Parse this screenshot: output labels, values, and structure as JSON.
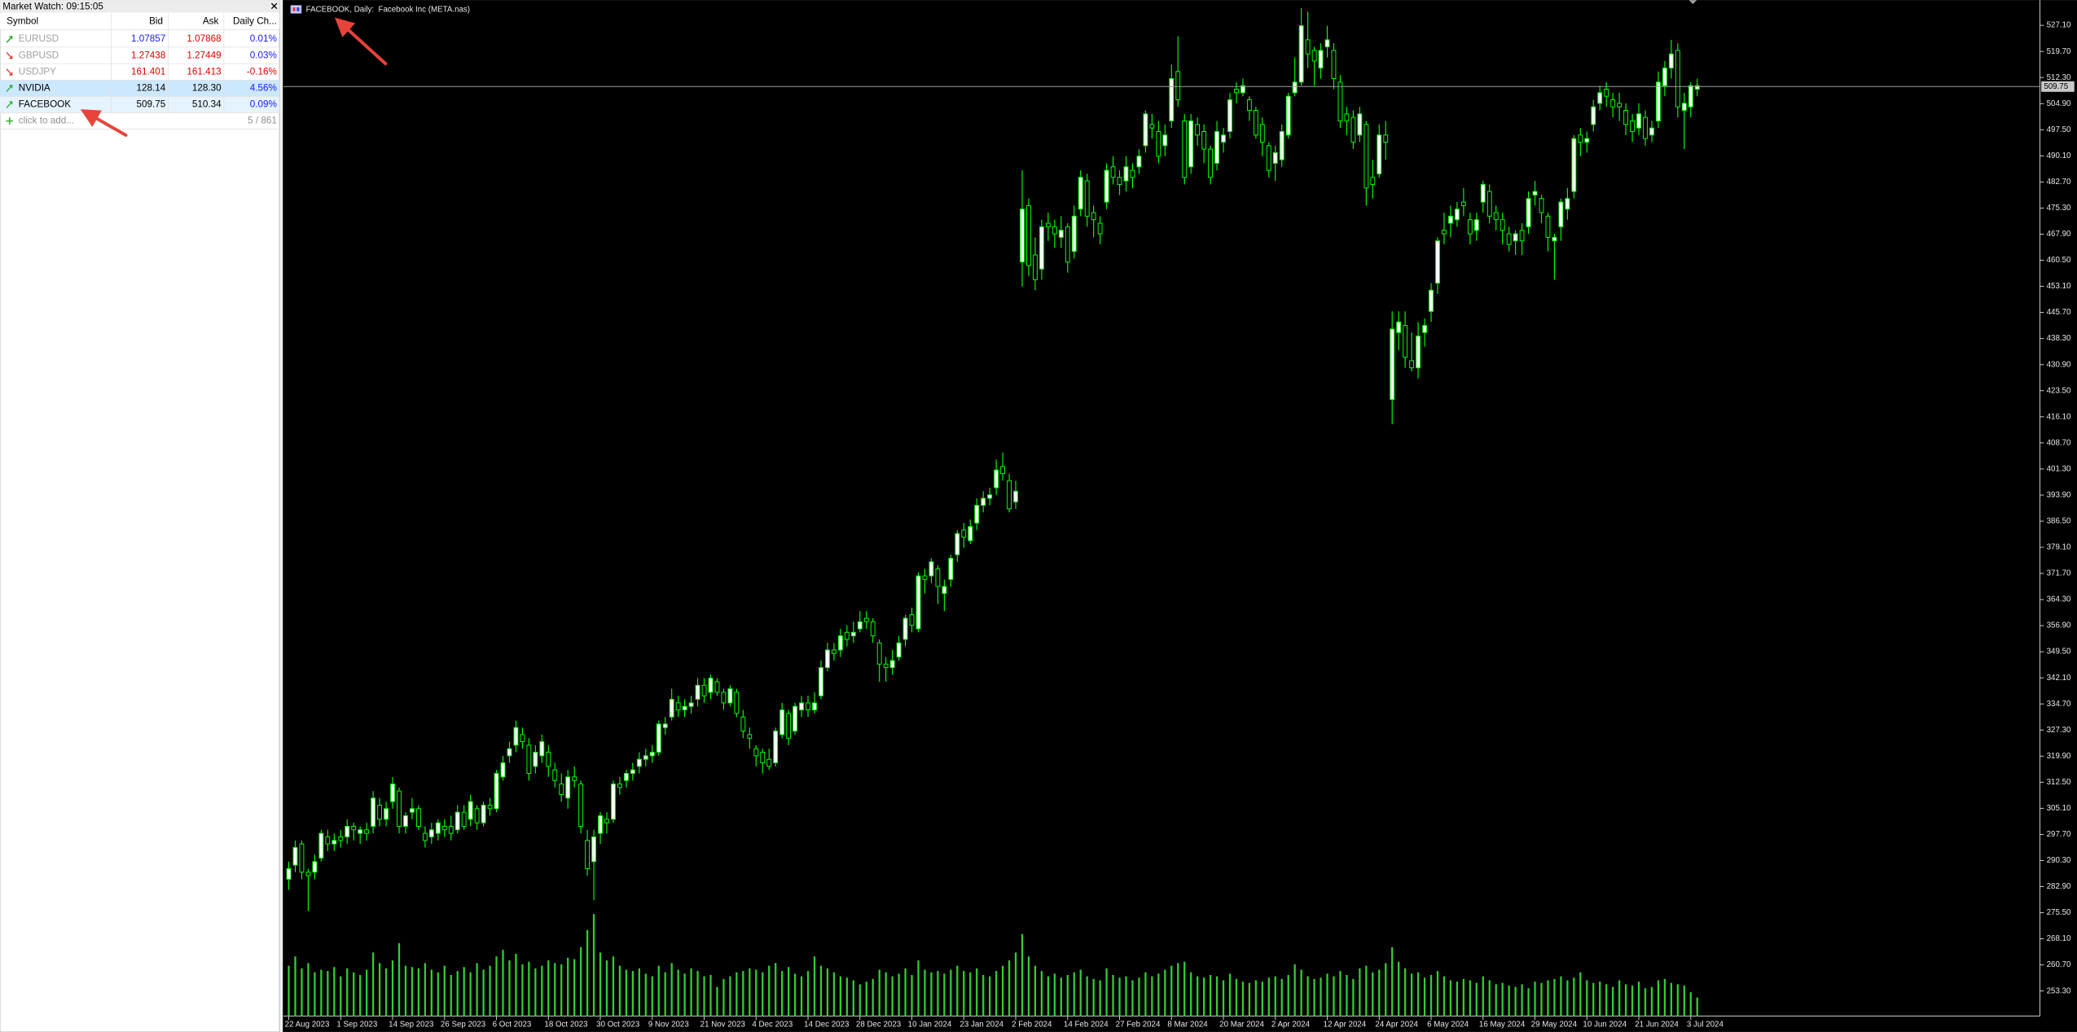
{
  "market_watch": {
    "title": "Market Watch: 09:15:05",
    "columns": [
      "Symbol",
      "Bid",
      "Ask",
      "Daily Ch..."
    ],
    "rows": [
      {
        "symbol": "EURUSD",
        "bid": "1.07857",
        "ask": "1.07868",
        "change": "0.01%"
      },
      {
        "symbol": "GBPUSD",
        "bid": "1.27438",
        "ask": "1.27449",
        "change": "0.03%"
      },
      {
        "symbol": "USDJPY",
        "bid": "161.401",
        "ask": "161.413",
        "change": "-0.16%"
      },
      {
        "symbol": "NVIDIA",
        "bid": "128.14",
        "ask": "128.30",
        "change": "4.56%"
      },
      {
        "symbol": "FACEBOOK",
        "bid": "509.75",
        "ask": "510.34",
        "change": "0.09%"
      }
    ],
    "add_label": "click to add...",
    "count": "5 / 861"
  },
  "chart_data": {
    "type": "candlestick",
    "title": "FACEBOOK, Daily:  Facebook Inc (META.nas)",
    "categories": [
      "22 Aug 2023",
      null,
      null,
      null,
      null,
      null,
      null,
      null,
      "1 Sep 2023",
      null,
      null,
      null,
      null,
      null,
      null,
      null,
      "14 Sep 2023",
      null,
      null,
      null,
      null,
      null,
      null,
      null,
      "26 Sep 2023",
      null,
      null,
      null,
      null,
      null,
      null,
      null,
      "6 Oct 2023",
      null,
      null,
      null,
      null,
      null,
      null,
      null,
      "18 Oct 2023",
      null,
      null,
      null,
      null,
      null,
      null,
      null,
      "30 Oct 2023",
      null,
      null,
      null,
      null,
      null,
      null,
      null,
      "9 Nov 2023",
      null,
      null,
      null,
      null,
      null,
      null,
      null,
      "21 Nov 2023",
      null,
      null,
      null,
      null,
      null,
      null,
      null,
      "4 Dec 2023",
      null,
      null,
      null,
      null,
      null,
      null,
      null,
      "14 Dec 2023",
      null,
      null,
      null,
      null,
      null,
      null,
      null,
      "28 Dec 2023",
      null,
      null,
      null,
      null,
      null,
      null,
      null,
      "10 Jan 2024",
      null,
      null,
      null,
      null,
      null,
      null,
      null,
      "23 Jan 2024",
      null,
      null,
      null,
      null,
      null,
      null,
      null,
      "2 Feb 2024",
      null,
      null,
      null,
      null,
      null,
      null,
      null,
      "14 Feb 2024",
      null,
      null,
      null,
      null,
      null,
      null,
      null,
      "27 Feb 2024",
      null,
      null,
      null,
      null,
      null,
      null,
      null,
      "8 Mar 2024",
      null,
      null,
      null,
      null,
      null,
      null,
      null,
      "20 Mar 2024",
      null,
      null,
      null,
      null,
      null,
      null,
      null,
      "2 Apr 2024",
      null,
      null,
      null,
      null,
      null,
      null,
      null,
      "12 Apr 2024",
      null,
      null,
      null,
      null,
      null,
      null,
      null,
      "24 Apr 2024",
      null,
      null,
      null,
      null,
      null,
      null,
      null,
      "6 May 2024",
      null,
      null,
      null,
      null,
      null,
      null,
      null,
      "16 May 2024",
      null,
      null,
      null,
      null,
      null,
      null,
      null,
      "29 May 2024",
      null,
      null,
      null,
      null,
      null,
      null,
      null,
      "10 Jun 2024",
      null,
      null,
      null,
      null,
      null,
      null,
      null,
      "21 Jun 2024",
      null,
      null,
      null,
      null,
      null,
      null,
      null,
      "3 Jul 2024",
      null
    ],
    "open": [
      285,
      289,
      295,
      287,
      287,
      291,
      297,
      295,
      297,
      297,
      300,
      298,
      299,
      300,
      306,
      302,
      307,
      310,
      300,
      304,
      305,
      298,
      297,
      298,
      300,
      300,
      299,
      304,
      302,
      305,
      301,
      306,
      305,
      314,
      320,
      323,
      326,
      323,
      317,
      320,
      321,
      316,
      312,
      308,
      314,
      312,
      296,
      290,
      298,
      302,
      302,
      312,
      313,
      315,
      317,
      319,
      320,
      321,
      328,
      331,
      335,
      333,
      334,
      336,
      340,
      338,
      341,
      338,
      335,
      338,
      331,
      326,
      322,
      321,
      319,
      318,
      326,
      332,
      327,
      333,
      335,
      333,
      337,
      345,
      350,
      350,
      355,
      354,
      356,
      359,
      358,
      352,
      346,
      345,
      348,
      353,
      360,
      356,
      371,
      371,
      373,
      366,
      370,
      377,
      384,
      381,
      386,
      391,
      393,
      396,
      402,
      398,
      392,
      460,
      476,
      462,
      458,
      471,
      470,
      467,
      470,
      463,
      475,
      483,
      474,
      471,
      477,
      487,
      484,
      483,
      486,
      487,
      493,
      499,
      497,
      493,
      500,
      514,
      500,
      487,
      499,
      497,
      492,
      488,
      494,
      497,
      509,
      508,
      506,
      503,
      499,
      493,
      488,
      489,
      496,
      508,
      511,
      523,
      520,
      515,
      521,
      520,
      511,
      502,
      501,
      496,
      499,
      484,
      485,
      496,
      421,
      440,
      442,
      432,
      430,
      440,
      446,
      454,
      469,
      471,
      472,
      477,
      472,
      469,
      477,
      480,
      474,
      472,
      468,
      466,
      469,
      470,
      479,
      478,
      473,
      466,
      470,
      475,
      480,
      496,
      494,
      499,
      505,
      509,
      506,
      505,
      503,
      500,
      498,
      501,
      496,
      500,
      510,
      515,
      520,
      503,
      504,
      509
    ],
    "high": [
      290,
      296,
      296,
      288,
      292,
      299,
      299,
      298,
      299,
      302,
      301,
      300,
      301,
      310,
      308,
      307,
      314,
      311,
      304,
      308,
      306,
      300,
      301,
      302,
      302,
      303,
      306,
      306,
      309,
      306,
      307,
      308,
      316,
      320,
      324,
      330,
      328,
      325,
      323,
      326,
      323,
      318,
      315,
      316,
      317,
      313,
      299,
      299,
      304,
      304,
      313,
      314,
      316,
      318,
      321,
      322,
      323,
      330,
      331,
      339,
      337,
      336,
      337,
      342,
      342,
      343,
      342,
      339,
      340,
      339,
      333,
      328,
      323,
      322,
      322,
      328,
      335,
      333,
      335,
      337,
      337,
      338,
      347,
      352,
      352,
      356,
      357,
      358,
      361,
      361,
      359,
      353,
      348,
      350,
      354,
      360,
      362,
      372,
      373,
      376,
      374,
      370,
      377,
      384,
      386,
      387,
      393,
      395,
      396,
      404,
      406,
      400,
      398,
      486,
      478,
      467,
      472,
      474,
      472,
      473,
      471,
      476,
      486,
      485,
      476,
      473,
      488,
      490,
      486,
      490,
      488,
      492,
      503,
      502,
      500,
      499,
      516,
      524,
      502,
      502,
      501,
      499,
      493,
      500,
      498,
      508,
      511,
      512,
      507,
      504,
      501,
      494,
      493,
      499,
      508,
      518,
      532,
      531,
      521,
      522,
      527,
      522,
      513,
      504,
      503,
      504,
      500,
      489,
      499,
      500,
      446,
      446,
      446,
      440,
      443,
      444,
      454,
      467,
      474,
      476,
      477,
      481,
      474,
      474,
      483,
      482,
      476,
      474,
      470,
      469,
      471,
      480,
      483,
      479,
      474,
      468,
      478,
      481,
      496,
      498,
      497,
      506,
      510,
      511,
      508,
      508,
      505,
      502,
      505,
      503,
      500,
      514,
      517,
      523,
      522,
      508,
      511,
      512
    ],
    "low": [
      282,
      287,
      285,
      276,
      285,
      290,
      293,
      293,
      294,
      295,
      296,
      295,
      296,
      298,
      300,
      300,
      305,
      298,
      298,
      302,
      299,
      294,
      295,
      296,
      297,
      296,
      298,
      299,
      300,
      299,
      300,
      303,
      304,
      313,
      318,
      321,
      322,
      313,
      315,
      318,
      314,
      311,
      307,
      305,
      311,
      298,
      286,
      279,
      295,
      298,
      301,
      309,
      311,
      313,
      315,
      317,
      318,
      320,
      326,
      330,
      331,
      331,
      332,
      334,
      335,
      336,
      337,
      333,
      334,
      331,
      325,
      322,
      317,
      315,
      316,
      317,
      325,
      323,
      326,
      331,
      331,
      332,
      336,
      344,
      347,
      348,
      351,
      352,
      355,
      356,
      352,
      341,
      341,
      343,
      347,
      351,
      355,
      355,
      366,
      369,
      363,
      361,
      368,
      375,
      379,
      380,
      384,
      389,
      391,
      394,
      398,
      389,
      390,
      453,
      456,
      452,
      455,
      466,
      464,
      464,
      457,
      461,
      473,
      470,
      467,
      465,
      475,
      482,
      479,
      480,
      481,
      485,
      491,
      495,
      488,
      490,
      498,
      504,
      482,
      485,
      493,
      488,
      482,
      486,
      491,
      495,
      505,
      507,
      500,
      495,
      490,
      484,
      483,
      487,
      495,
      507,
      510,
      515,
      510,
      512,
      518,
      509,
      498,
      496,
      492,
      494,
      476,
      478,
      484,
      489,
      414,
      435,
      430,
      429,
      427,
      436,
      443,
      451,
      465,
      467,
      470,
      473,
      465,
      466,
      474,
      471,
      469,
      465,
      463,
      462,
      462,
      468,
      476,
      471,
      463,
      455,
      466,
      472,
      478,
      490,
      491,
      497,
      503,
      504,
      501,
      500,
      496,
      494,
      496,
      493,
      494,
      498,
      507,
      512,
      501,
      492,
      501,
      507
    ],
    "close": [
      288,
      294,
      287,
      286,
      290,
      298,
      295,
      296,
      296,
      300,
      299,
      299,
      298,
      308,
      302,
      305,
      312,
      300,
      303,
      305,
      300,
      296,
      299,
      301,
      299,
      298,
      304,
      300,
      307,
      301,
      306,
      305,
      315,
      318,
      322,
      328,
      324,
      315,
      321,
      324,
      317,
      313,
      309,
      314,
      313,
      300,
      288,
      297,
      303,
      301,
      312,
      311,
      315,
      316,
      319,
      320,
      321,
      329,
      329,
      336,
      333,
      334,
      335,
      340,
      337,
      342,
      338,
      335,
      339,
      332,
      327,
      325,
      320,
      318,
      317,
      327,
      333,
      325,
      334,
      335,
      333,
      335,
      345,
      350,
      349,
      354,
      353,
      355,
      358,
      358,
      354,
      346,
      345,
      347,
      352,
      359,
      357,
      371,
      370,
      375,
      368,
      368,
      376,
      383,
      382,
      385,
      391,
      393,
      394,
      401,
      400,
      390,
      395,
      475,
      459,
      455,
      470,
      470,
      468,
      469,
      460,
      473,
      484,
      473,
      472,
      468,
      486,
      484,
      482,
      487,
      484,
      490,
      502,
      498,
      490,
      496,
      512,
      506,
      484,
      500,
      496,
      492,
      484,
      497,
      496,
      506,
      508,
      510,
      503,
      496,
      494,
      486,
      491,
      497,
      507,
      511,
      527,
      519,
      517,
      520,
      523,
      512,
      500,
      500,
      494,
      502,
      481,
      482,
      496,
      494,
      441,
      443,
      433,
      430,
      439,
      442,
      452,
      466,
      468,
      473,
      475,
      476,
      468,
      472,
      482,
      473,
      472,
      469,
      465,
      468,
      466,
      478,
      480,
      474,
      467,
      467,
      477,
      478,
      495,
      494,
      495,
      504,
      508,
      507,
      504,
      504,
      499,
      497,
      502,
      495,
      498,
      511,
      515,
      519,
      504,
      505,
      510,
      510
    ],
    "volume": [
      38,
      45,
      36,
      40,
      33,
      35,
      34,
      37,
      30,
      36,
      33,
      31,
      35,
      48,
      40,
      36,
      42,
      55,
      38,
      37,
      36,
      40,
      35,
      33,
      38,
      31,
      34,
      37,
      33,
      40,
      35,
      38,
      45,
      50,
      42,
      47,
      39,
      41,
      36,
      38,
      42,
      40,
      39,
      44,
      43,
      52,
      65,
      77,
      48,
      42,
      45,
      38,
      35,
      34,
      36,
      32,
      30,
      38,
      33,
      40,
      35,
      32,
      36,
      34,
      30,
      31,
      22,
      28,
      30,
      33,
      34,
      36,
      35,
      33,
      38,
      40,
      34,
      37,
      32,
      30,
      34,
      45,
      38,
      36,
      33,
      30,
      29,
      27,
      24,
      26,
      28,
      35,
      33,
      30,
      32,
      36,
      31,
      42,
      35,
      33,
      34,
      32,
      35,
      38,
      34,
      33,
      36,
      31,
      30,
      34,
      38,
      42,
      48,
      62,
      45,
      38,
      34,
      30,
      32,
      29,
      31,
      33,
      35,
      30,
      28,
      27,
      36,
      31,
      29,
      30,
      27,
      29,
      33,
      30,
      32,
      35,
      38,
      40,
      41,
      33,
      30,
      29,
      31,
      30,
      27,
      32,
      28,
      26,
      25,
      27,
      26,
      29,
      30,
      28,
      31,
      39,
      35,
      30,
      28,
      29,
      32,
      30,
      34,
      31,
      28,
      36,
      38,
      33,
      35,
      40,
      52,
      41,
      36,
      32,
      33,
      29,
      31,
      34,
      30,
      27,
      26,
      28,
      27,
      25,
      30,
      27,
      24,
      25,
      23,
      22,
      24,
      21,
      26,
      25,
      27,
      28,
      30,
      27,
      29,
      33,
      27,
      25,
      26,
      24,
      22,
      27,
      24,
      23,
      26,
      21,
      22,
      27,
      28,
      25,
      24,
      23,
      18,
      14
    ],
    "ylim": [
      246.2,
      533.9
    ],
    "yticks": [
      {
        "value": 527.1,
        "label": "527.10"
      },
      {
        "value": 519.7,
        "label": "519.70"
      },
      {
        "value": 512.3,
        "label": "512.30"
      },
      {
        "value": 504.9,
        "label": "504.90"
      },
      {
        "value": 497.5,
        "label": "497.50"
      },
      {
        "value": 490.1,
        "label": "490.10"
      },
      {
        "value": 482.7,
        "label": "482.70"
      },
      {
        "value": 475.3,
        "label": "475.30"
      },
      {
        "value": 467.9,
        "label": "467.90"
      },
      {
        "value": 460.5,
        "label": "460.50"
      },
      {
        "value": 453.1,
        "label": "453.10"
      },
      {
        "value": 445.7,
        "label": "445.70"
      },
      {
        "value": 438.3,
        "label": "438.30"
      },
      {
        "value": 430.9,
        "label": "430.90"
      },
      {
        "value": 423.5,
        "label": "423.50"
      },
      {
        "value": 416.1,
        "label": "416.10"
      },
      {
        "value": 408.7,
        "label": "408.70"
      },
      {
        "value": 401.3,
        "label": "401.30"
      },
      {
        "value": 393.9,
        "label": "393.90"
      },
      {
        "value": 386.5,
        "label": "386.50"
      },
      {
        "value": 379.1,
        "label": "379.10"
      },
      {
        "value": 371.7,
        "label": "371.70"
      },
      {
        "value": 364.3,
        "label": "364.30"
      },
      {
        "value": 356.9,
        "label": "356.90"
      },
      {
        "value": 349.5,
        "label": "349.50"
      },
      {
        "value": 342.1,
        "label": "342.10"
      },
      {
        "value": 334.7,
        "label": "334.70"
      },
      {
        "value": 327.3,
        "label": "327.30"
      },
      {
        "value": 319.9,
        "label": "319.90"
      },
      {
        "value": 312.5,
        "label": "312.50"
      },
      {
        "value": 305.1,
        "label": "305.10"
      },
      {
        "value": 297.7,
        "label": "297.70"
      },
      {
        "value": 290.3,
        "label": "290.30"
      },
      {
        "value": 282.9,
        "label": "282.90"
      },
      {
        "value": 275.5,
        "label": "275.50"
      },
      {
        "value": 268.1,
        "label": "268.10"
      },
      {
        "value": 260.7,
        "label": "260.70"
      },
      {
        "value": 253.3,
        "label": "253.30"
      }
    ],
    "current_price": 509.75,
    "colors": {
      "bull": "#ffffff",
      "bear": "#000000",
      "wick": "#00ff00",
      "volume": "#32cd32",
      "price_line": "#a0a0a0"
    }
  }
}
